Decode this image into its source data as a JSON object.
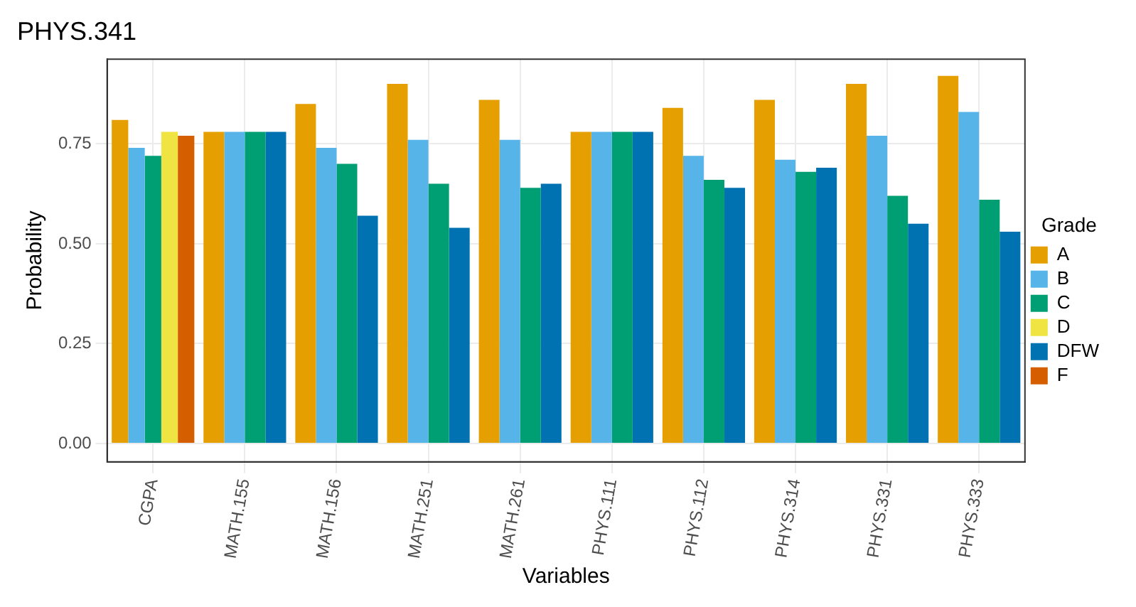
{
  "chart_data": {
    "type": "bar",
    "title": "PHYS.341",
    "xlabel": "Variables",
    "ylabel": "Probability",
    "legend_title": "Grade",
    "categories": [
      "CGPA",
      "MATH.155",
      "MATH.156",
      "MATH.251",
      "MATH.261",
      "PHYS.111",
      "PHYS.112",
      "PHYS.314",
      "PHYS.331",
      "PHYS.333"
    ],
    "series": [
      {
        "name": "A",
        "color": "#e69f00",
        "values": [
          0.81,
          0.78,
          0.85,
          0.9,
          0.86,
          0.78,
          0.84,
          0.86,
          0.9,
          0.92
        ]
      },
      {
        "name": "B",
        "color": "#56b4e9",
        "values": [
          0.74,
          0.78,
          0.74,
          0.76,
          0.76,
          0.78,
          0.72,
          0.71,
          0.77,
          0.83
        ]
      },
      {
        "name": "C",
        "color": "#009e73",
        "values": [
          0.72,
          0.78,
          0.7,
          0.65,
          0.64,
          0.78,
          0.66,
          0.68,
          0.62,
          0.61
        ]
      },
      {
        "name": "D",
        "color": "#f0e442",
        "values": [
          0.78,
          null,
          null,
          null,
          null,
          null,
          null,
          null,
          null,
          null
        ]
      },
      {
        "name": "DFW",
        "color": "#0072b2",
        "values": [
          null,
          0.78,
          0.57,
          0.54,
          0.65,
          0.78,
          0.64,
          0.69,
          0.55,
          0.53
        ]
      },
      {
        "name": "F",
        "color": "#d55e00",
        "values": [
          0.77,
          null,
          null,
          null,
          null,
          null,
          null,
          null,
          null,
          null
        ]
      }
    ],
    "ylim": [
      -0.046,
      0.962
    ],
    "yticks": [
      {
        "value": 0,
        "label": "0.00"
      },
      0.25,
      {
        "value": 0.5,
        "label": "0.50"
      },
      0.75
    ],
    "grid": true,
    "legend": "right"
  }
}
